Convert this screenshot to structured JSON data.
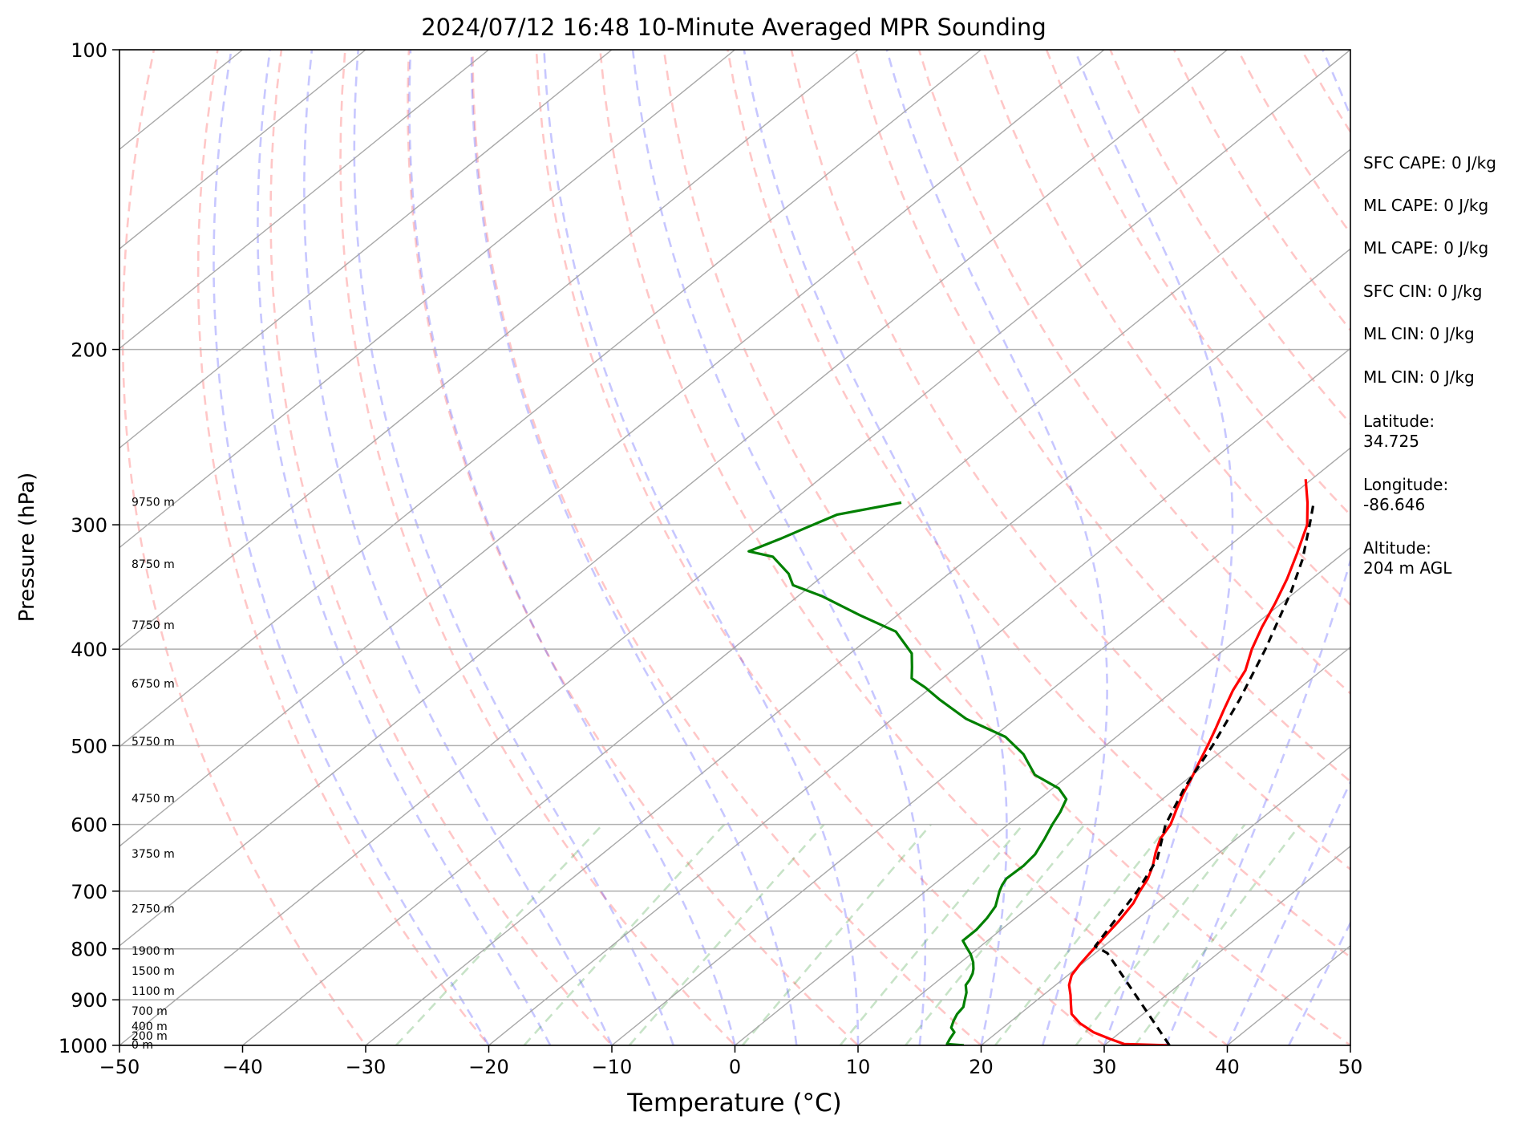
{
  "chart_data": {
    "type": "line",
    "title": "2024/07/12 16:48 10-Minute Averaged MPR Sounding",
    "xlabel": "Temperature (°C)",
    "ylabel": "Pressure (hPa)",
    "xlim": [
      -50,
      50
    ],
    "ylim": [
      1000,
      100
    ],
    "y_scale": "log",
    "skew": "skew-T log-p",
    "grid": true,
    "x_ticks": [
      "−50",
      "−40",
      "−30",
      "−20",
      "−10",
      "0",
      "10",
      "20",
      "30",
      "40",
      "50"
    ],
    "y_ticks": [
      "100",
      "200",
      "300",
      "400",
      "500",
      "600",
      "700",
      "800",
      "900",
      "1000"
    ],
    "height_labels": [
      {
        "text": "0 m",
        "p": 1000
      },
      {
        "text": "200 m",
        "p": 980
      },
      {
        "text": "400 m",
        "p": 958
      },
      {
        "text": "700 m",
        "p": 925
      },
      {
        "text": "1100 m",
        "p": 883
      },
      {
        "text": "1500 m",
        "p": 843
      },
      {
        "text": "1900 m",
        "p": 805
      },
      {
        "text": "2750 m",
        "p": 730
      },
      {
        "text": "3750 m",
        "p": 643
      },
      {
        "text": "4750 m",
        "p": 566
      },
      {
        "text": "5750 m",
        "p": 496
      },
      {
        "text": "6750 m",
        "p": 434
      },
      {
        "text": "7750 m",
        "p": 379
      },
      {
        "text": "8750 m",
        "p": 329
      },
      {
        "text": "9750 m",
        "p": 285
      }
    ],
    "series": [
      {
        "key": "temperature",
        "color": "#ff0000",
        "style": "solid",
        "points": [
          [
            35.3,
            1000
          ],
          [
            31.5,
            997
          ],
          [
            29.8,
            985
          ],
          [
            27.8,
            970
          ],
          [
            25.8,
            950
          ],
          [
            24.2,
            930
          ],
          [
            23.2,
            910
          ],
          [
            22.2,
            890
          ],
          [
            21.1,
            870
          ],
          [
            20.3,
            850
          ],
          [
            19.9,
            830
          ],
          [
            19.6,
            810
          ],
          [
            19.3,
            790
          ],
          [
            19.0,
            770
          ],
          [
            18.7,
            750
          ],
          [
            18.1,
            720
          ],
          [
            17.4,
            700
          ],
          [
            16.8,
            680
          ],
          [
            15.9,
            660
          ],
          [
            14.8,
            640
          ],
          [
            13.8,
            620
          ],
          [
            13.2,
            600
          ],
          [
            12.2,
            580
          ],
          [
            11.2,
            560
          ],
          [
            10.3,
            540
          ],
          [
            9.3,
            520
          ],
          [
            8.3,
            500
          ],
          [
            7.2,
            480
          ],
          [
            6.0,
            460
          ],
          [
            4.8,
            440
          ],
          [
            3.8,
            420
          ],
          [
            2.2,
            400
          ],
          [
            0.8,
            380
          ],
          [
            -0.5,
            360
          ],
          [
            -2.0,
            340
          ],
          [
            -3.8,
            320
          ],
          [
            -5.8,
            300
          ],
          [
            -8.0,
            285
          ],
          [
            -10.5,
            270
          ]
        ]
      },
      {
        "key": "dewpoint",
        "color": "#008000",
        "style": "solid",
        "points": [
          [
            18.6,
            1000
          ],
          [
            17.1,
            997
          ],
          [
            16.8,
            985
          ],
          [
            16.5,
            970
          ],
          [
            15.8,
            960
          ],
          [
            15.3,
            945
          ],
          [
            14.9,
            930
          ],
          [
            14.7,
            915
          ],
          [
            14.3,
            905
          ],
          [
            13.5,
            885
          ],
          [
            12.7,
            870
          ],
          [
            12.5,
            860
          ],
          [
            12.1,
            847
          ],
          [
            11.7,
            838
          ],
          [
            11.0,
            825
          ],
          [
            10.0,
            810
          ],
          [
            8.8,
            795
          ],
          [
            8.0,
            785
          ],
          [
            8.0,
            765
          ],
          [
            7.7,
            745
          ],
          [
            7.2,
            725
          ],
          [
            6.0,
            700
          ],
          [
            5.6,
            690
          ],
          [
            5.3,
            680
          ],
          [
            5.4,
            660
          ],
          [
            5.2,
            643
          ],
          [
            4.4,
            620
          ],
          [
            3.6,
            600
          ],
          [
            3.0,
            583
          ],
          [
            2.2,
            566
          ],
          [
            0.5,
            552
          ],
          [
            -2.8,
            535
          ],
          [
            -5.8,
            510
          ],
          [
            -9.0,
            490
          ],
          [
            -14.0,
            470
          ],
          [
            -18.0,
            450
          ],
          [
            -20.5,
            437
          ],
          [
            -22.5,
            428
          ],
          [
            -23.6,
            417
          ],
          [
            -25.0,
            404
          ],
          [
            -28.5,
            384
          ],
          [
            -33.0,
            370
          ],
          [
            -38.0,
            354
          ],
          [
            -41.5,
            345
          ],
          [
            -43.0,
            336
          ],
          [
            -46.0,
            323
          ],
          [
            -48.5,
            319
          ],
          [
            -47.2,
            310
          ],
          [
            -46.2,
            302
          ],
          [
            -45.0,
            293
          ],
          [
            -41.0,
            285
          ]
        ]
      },
      {
        "key": "parcel",
        "color": "#000000",
        "style": "dashed",
        "points": [
          [
            35.3,
            1000
          ],
          [
            21.0,
            808
          ],
          [
            19.3,
            795
          ],
          [
            17.2,
            700
          ],
          [
            15.6,
            650
          ],
          [
            12.8,
            600
          ],
          [
            10.6,
            550
          ],
          [
            8.7,
            500
          ],
          [
            6.3,
            450
          ],
          [
            3.3,
            400
          ],
          [
            -0.4,
            350
          ],
          [
            -2.7,
            325
          ],
          [
            -5.6,
            300
          ],
          [
            -7.5,
            285
          ]
        ]
      }
    ]
  },
  "annotations": [
    "SFC CAPE: 0 J/kg",
    "ML CAPE: 0 J/kg",
    "ML CAPE: 0 J/kg",
    "SFC CIN: 0 J/kg",
    "ML CIN: 0 J/kg",
    "ML CIN: 0 J/kg",
    "Latitude:",
    "34.725",
    "Longitude:",
    "-86.646",
    "Altitude:",
    "204 m AGL"
  ]
}
